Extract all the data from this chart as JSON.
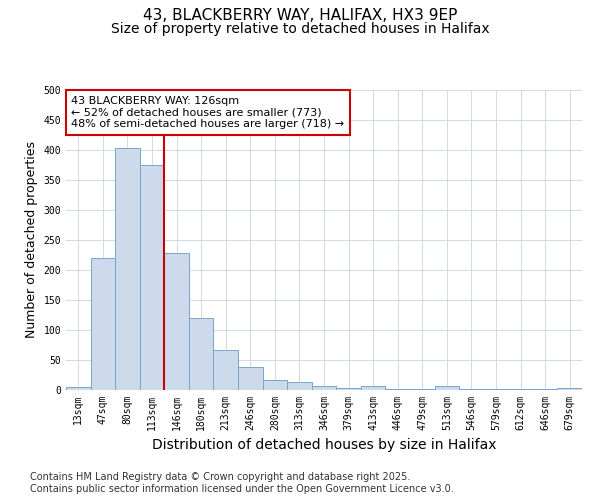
{
  "title_line1": "43, BLACKBERRY WAY, HALIFAX, HX3 9EP",
  "title_line2": "Size of property relative to detached houses in Halifax",
  "xlabel": "Distribution of detached houses by size in Halifax",
  "ylabel": "Number of detached properties",
  "bar_labels": [
    "13sqm",
    "47sqm",
    "80sqm",
    "113sqm",
    "146sqm",
    "180sqm",
    "213sqm",
    "246sqm",
    "280sqm",
    "313sqm",
    "346sqm",
    "379sqm",
    "413sqm",
    "446sqm",
    "479sqm",
    "513sqm",
    "546sqm",
    "579sqm",
    "612sqm",
    "646sqm",
    "679sqm"
  ],
  "bar_values": [
    5,
    220,
    403,
    375,
    229,
    120,
    67,
    38,
    17,
    14,
    6,
    3,
    7,
    2,
    1,
    7,
    2,
    1,
    1,
    1,
    3
  ],
  "bar_color": "#cddaeb",
  "bar_edgecolor": "#7aa4cc",
  "bar_linewidth": 0.7,
  "redline_x": 3.5,
  "redline_color": "#cc0000",
  "ylim": [
    0,
    500
  ],
  "yticks": [
    0,
    50,
    100,
    150,
    200,
    250,
    300,
    350,
    400,
    450,
    500
  ],
  "annotation_text": "43 BLACKBERRY WAY: 126sqm\n← 52% of detached houses are smaller (773)\n48% of semi-detached houses are larger (718) →",
  "annotation_box_color": "#ffffff",
  "annotation_box_edgecolor": "#cc0000",
  "footer_line1": "Contains HM Land Registry data © Crown copyright and database right 2025.",
  "footer_line2": "Contains public sector information licensed under the Open Government Licence v3.0.",
  "bg_color": "#ffffff",
  "plot_bg_color": "#ffffff",
  "grid_color": "#c8d4e0",
  "title_fontsize": 11,
  "subtitle_fontsize": 10,
  "tick_fontsize": 7,
  "ylabel_fontsize": 9,
  "xlabel_fontsize": 10,
  "footer_fontsize": 7,
  "annotation_fontsize": 8
}
